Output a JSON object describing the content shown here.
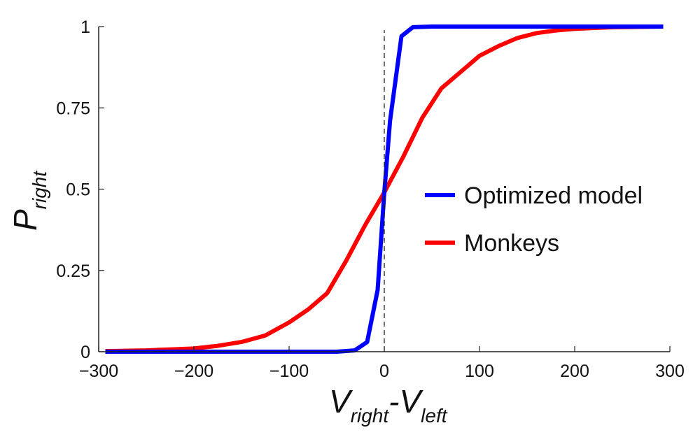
{
  "chart_data": {
    "type": "line",
    "xlabel": {
      "main": "V",
      "sub1": "right",
      "sep": "-V",
      "sub2": "left"
    },
    "ylabel": {
      "main": "P",
      "sub": "right"
    },
    "xlim": [
      -300,
      300
    ],
    "ylim": [
      0,
      1
    ],
    "xticks": [
      -300,
      -200,
      -100,
      0,
      100,
      200,
      300
    ],
    "xtick_labels": [
      "−300",
      "−200",
      "−100",
      "0",
      "100",
      "200",
      "300"
    ],
    "yticks": [
      0,
      0.25,
      0.5,
      0.75,
      1
    ],
    "ytick_labels": [
      "0",
      "0.25",
      "0.5",
      "0.75",
      "1"
    ],
    "grid": false,
    "legend_position": "center-right",
    "reference_line": {
      "x": 0,
      "style": "dashed"
    },
    "series": [
      {
        "name": "Optimized model",
        "color": "#0000ff",
        "x": [
          -293,
          -50,
          -31,
          -18,
          -7,
          0,
          6,
          18,
          30,
          50,
          293
        ],
        "y": [
          0,
          0,
          0.004,
          0.03,
          0.19,
          0.49,
          0.71,
          0.97,
          0.998,
          1,
          1
        ]
      },
      {
        "name": "Monkeys",
        "color": "#ff0000",
        "x": [
          -293,
          -250,
          -200,
          -175,
          -150,
          -125,
          -100,
          -80,
          -60,
          -40,
          -20,
          0,
          20,
          40,
          60,
          80,
          100,
          120,
          140,
          160,
          180,
          200,
          240,
          293
        ],
        "y": [
          0.002,
          0.004,
          0.01,
          0.018,
          0.03,
          0.05,
          0.09,
          0.13,
          0.18,
          0.28,
          0.39,
          0.49,
          0.6,
          0.72,
          0.81,
          0.86,
          0.91,
          0.94,
          0.965,
          0.98,
          0.988,
          0.993,
          0.998,
          1
        ]
      }
    ]
  }
}
